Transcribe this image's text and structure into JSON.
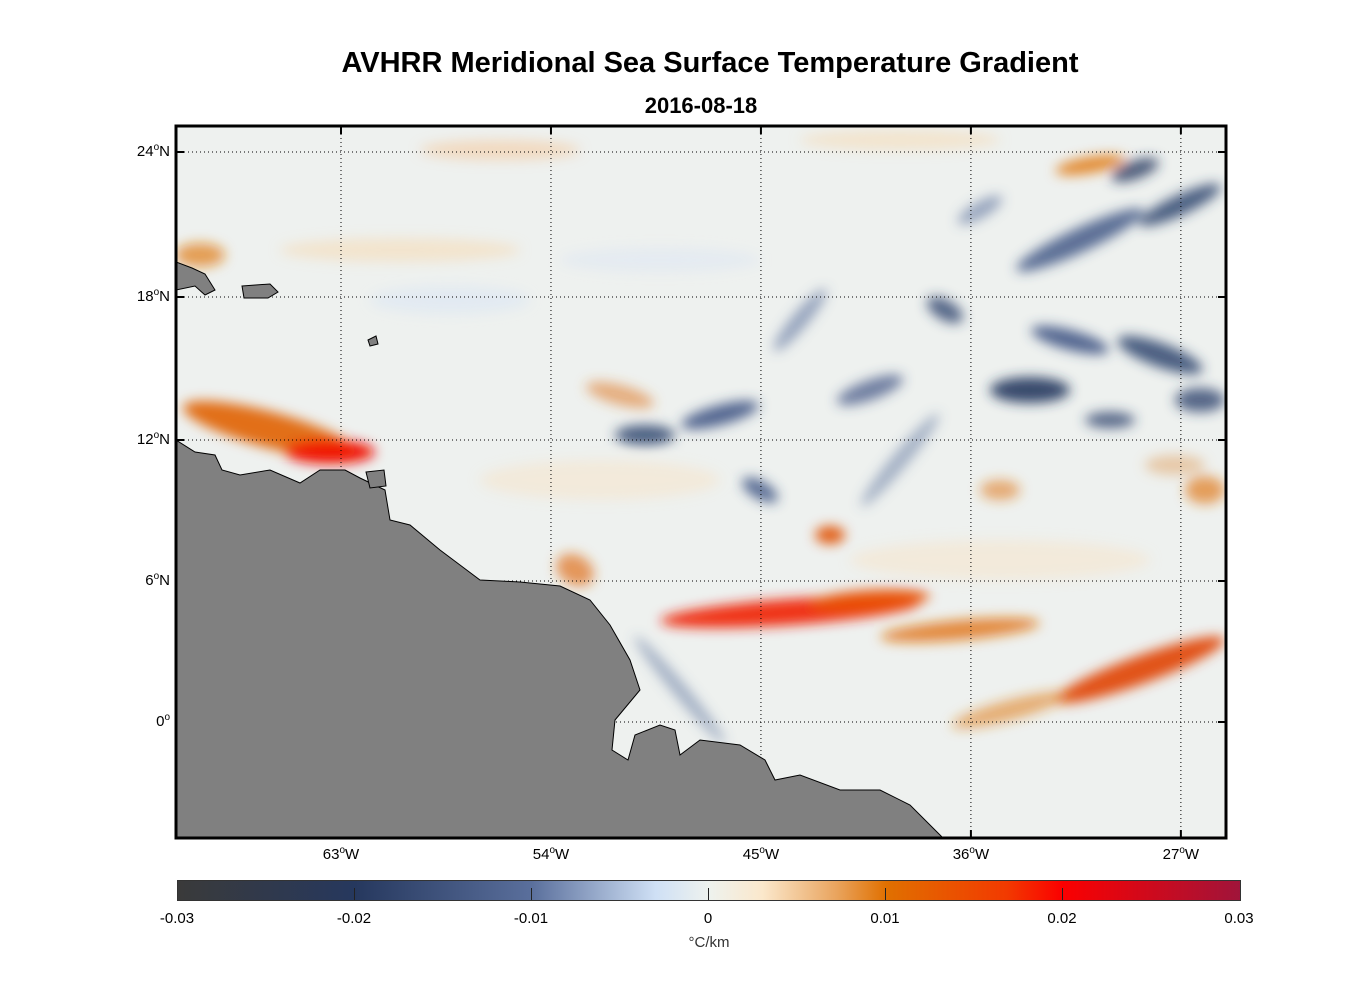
{
  "chart_data": {
    "type": "heatmap",
    "title": "AVHRR Meridional Sea Surface Temperature Gradient",
    "subtitle": "2016-08-18",
    "x_ticks": [
      {
        "value": -63,
        "label": "63",
        "suffix": "W"
      },
      {
        "value": -54,
        "label": "54",
        "suffix": "W"
      },
      {
        "value": -45,
        "label": "45",
        "suffix": "W"
      },
      {
        "value": -36,
        "label": "36",
        "suffix": "W"
      },
      {
        "value": -27,
        "label": "27",
        "suffix": "W"
      }
    ],
    "y_ticks": [
      {
        "value": 24,
        "label": "24",
        "suffix": "N"
      },
      {
        "value": 18,
        "label": "18",
        "suffix": "N"
      },
      {
        "value": 12,
        "label": "12",
        "suffix": "N"
      },
      {
        "value": 6,
        "label": "6",
        "suffix": "N"
      },
      {
        "value": 0,
        "label": "0",
        "suffix": ""
      }
    ],
    "degree_symbol": "o",
    "grid": true,
    "colorbar": {
      "range": [
        -0.03,
        0.03
      ],
      "ticks": [
        -0.03,
        -0.02,
        -0.01,
        0,
        0.01,
        0.02,
        0.03
      ],
      "tick_labels": [
        "-0.03",
        "-0.02",
        "-0.01",
        "0",
        "0.01",
        "0.02",
        "0.03"
      ],
      "unit": "°C/km",
      "placement": "bottom"
    },
    "land_color": "#808080"
  }
}
